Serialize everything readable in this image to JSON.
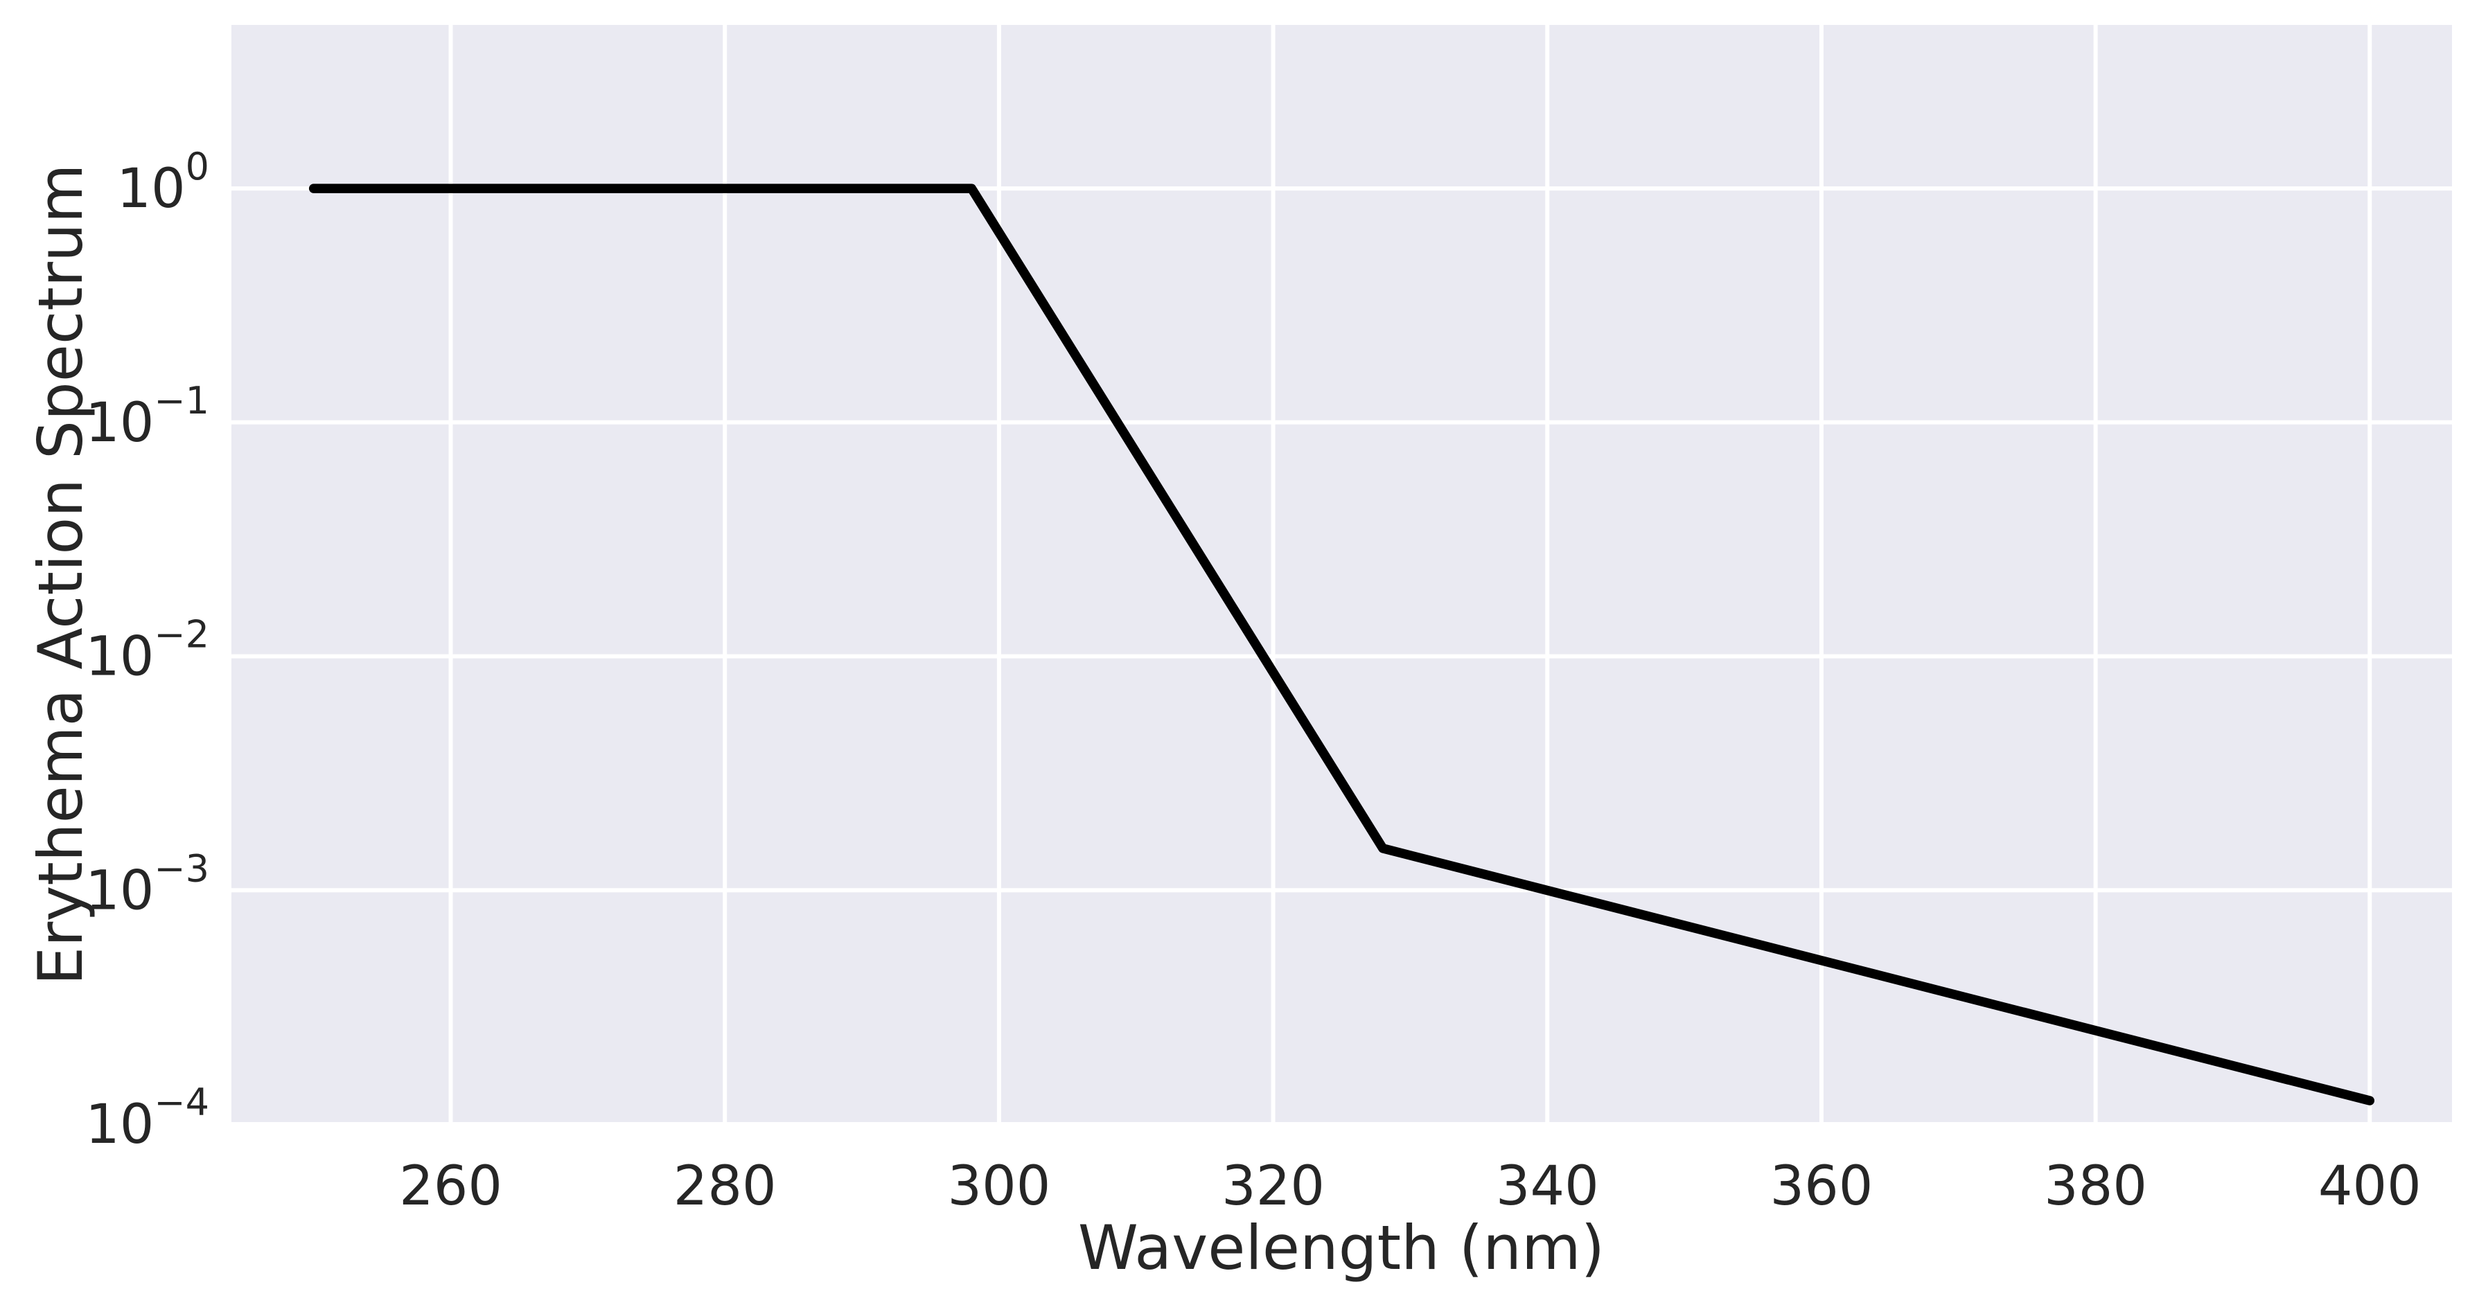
{
  "chart_data": {
    "type": "line",
    "title": "",
    "xlabel": "Wavelength (nm)",
    "ylabel": "Erythema Action Spectrum",
    "yscale": "log",
    "grid": true,
    "legend_position": "none",
    "series": [
      {
        "name": "erythema-action-spectrum",
        "x": [
          250,
          298,
          328,
          400
        ],
        "y": [
          1.0,
          1.0,
          0.00151,
          0.000126
        ]
      }
    ],
    "x_ticks": [
      260,
      280,
      300,
      320,
      340,
      360,
      380,
      400
    ],
    "y_tick_base": "10",
    "y_tick_exponents": [
      0,
      -1,
      -2,
      -3,
      -4
    ],
    "xlim": [
      244,
      406
    ],
    "ylim_log10": [
      -4,
      0.699
    ],
    "colors": {
      "line": "#000000",
      "axes_background": "#eaeaf2",
      "grid": "#ffffff",
      "text": "#262626",
      "figure_background": "#ffffff"
    }
  }
}
